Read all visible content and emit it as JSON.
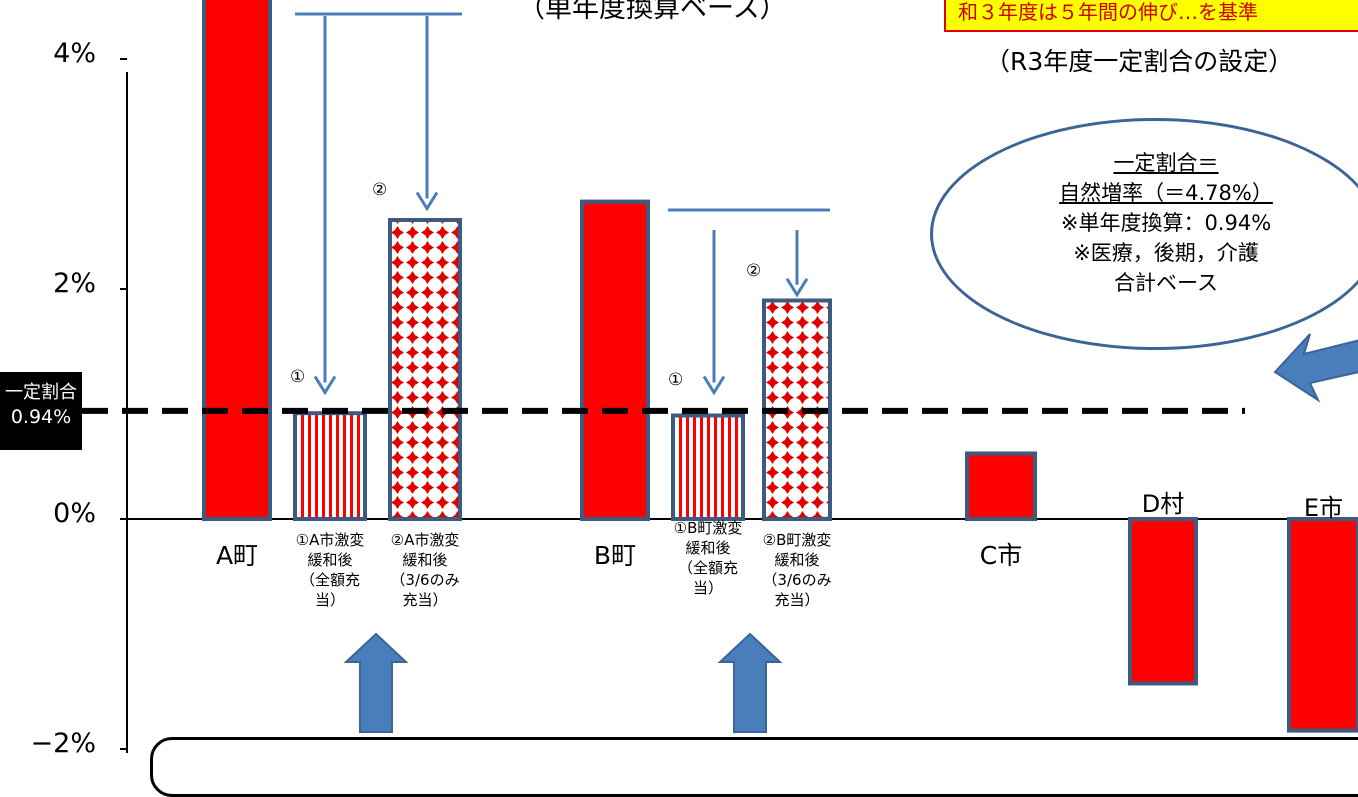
{
  "chart_data": {
    "type": "bar",
    "title_fragment": "（単年度換算ベース）",
    "note_fragment": "和３年度は５年間の伸び…を基準",
    "setting_label": "（R3年度一定割合の設定）",
    "yticks": [
      "4%",
      "2%",
      "0%",
      "−2%"
    ],
    "ylim": [
      -2.0,
      5.0
    ],
    "threshold": {
      "value": 0.94,
      "label_line1": "一定割合",
      "label_line2": "0.94%"
    },
    "bars": [
      {
        "name": "A町",
        "value": 4.74,
        "style": "solid"
      },
      {
        "name": "①A市激変\n緩和後\n（全額充\n当）",
        "value": 0.92,
        "style": "stripe",
        "marker": "①"
      },
      {
        "name": "②A市激変\n緩和後\n（3/6のみ\n充当）",
        "value": 2.6,
        "style": "dots",
        "marker": "②"
      },
      {
        "name": "B町",
        "value": 2.76,
        "style": "solid"
      },
      {
        "name": "①B町激変\n緩和後\n（全額充\n当）",
        "value": 0.9,
        "style": "stripe",
        "marker": "①"
      },
      {
        "name": "②B町激変\n緩和後\n（3/6のみ\n充当）",
        "value": 1.9,
        "style": "dots",
        "marker": "②"
      },
      {
        "name": "C市",
        "value": 0.57,
        "style": "solid"
      },
      {
        "name": "D村",
        "value": -1.43,
        "style": "solid"
      },
      {
        "name": "E市",
        "value": -1.84,
        "style": "solid"
      }
    ],
    "callout": {
      "line1": "一定割合＝",
      "line2": "自然増率（＝4.78%）",
      "line3": "※単年度換算：0.94%",
      "line4": "※医療，後期，介護",
      "line5": "合計ベース"
    },
    "colors": {
      "bar_fill": "#ff0000",
      "bar_border": "#3d5a80",
      "arrow": "#4a7ebb",
      "arrow_dark": "#3a6598"
    }
  }
}
